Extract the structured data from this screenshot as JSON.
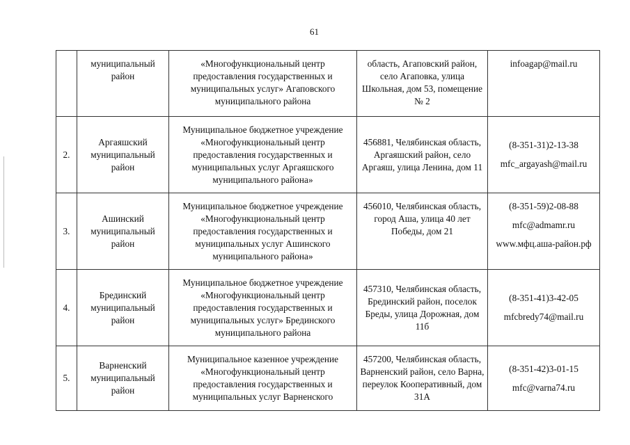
{
  "page_number": "61",
  "rows": [
    {
      "num": "",
      "district": "муниципальный район",
      "org": "«Многофункциональный центр предоставления государственных и муниципальных услуг» Агаповского муниципального района",
      "address": "область, Агаповский район, село Агаповка, улица Школьная, дом 53, помещение № 2",
      "contacts": [
        "infoagap@mail.ru"
      ]
    },
    {
      "num": "2.",
      "district": "Аргаяшский муниципальный район",
      "org": "Муниципальное бюджетное учреждение «Многофункциональный центр предоставления государственных и муниципальных услуг Аргаяшского муниципального района»",
      "address": "456881, Челябинская область, Аргаяшский район, село Аргаяш, улица Ленина, дом 11",
      "contacts": [
        "(8-351-31)2-13-38",
        "mfc_argayash@mail.ru"
      ]
    },
    {
      "num": "3.",
      "district": "Ашинский муниципальный район",
      "org": "Муниципальное бюджетное учреждение «Многофункциональный центр предоставления государственных и муниципальных услуг Ашинского муниципального района»",
      "address": "456010, Челябинская область, город Аша, улица 40 лет Победы, дом 21",
      "contacts": [
        "(8-351-59)2-08-88",
        "mfc@admamr.ru",
        "www.мфц.аша-район.рф"
      ]
    },
    {
      "num": "4.",
      "district": "Брединский муниципальный район",
      "org": "Муниципальное бюджетное учреждение «Многофункциональный центр предоставления государственных и муниципальных услуг» Брединского муниципального района",
      "address": "457310, Челябинская область, Брединский район, поселок Бреды, улица Дорожная, дом 11б",
      "contacts": [
        "(8-351-41)3-42-05",
        "mfcbredy74@mail.ru"
      ]
    },
    {
      "num": "5.",
      "district": "Варненский муниципальный район",
      "org": "Муниципальное казенное учреждение «Многофункциональный центр предоставления государственных и муниципальных услуг Варненского",
      "address": "457200, Челябинская область, Варненский район, село Варна, переулок Кооперативный, дом 31А",
      "contacts": [
        "(8-351-42)3-01-15",
        "mfc@varna74.ru"
      ]
    }
  ]
}
